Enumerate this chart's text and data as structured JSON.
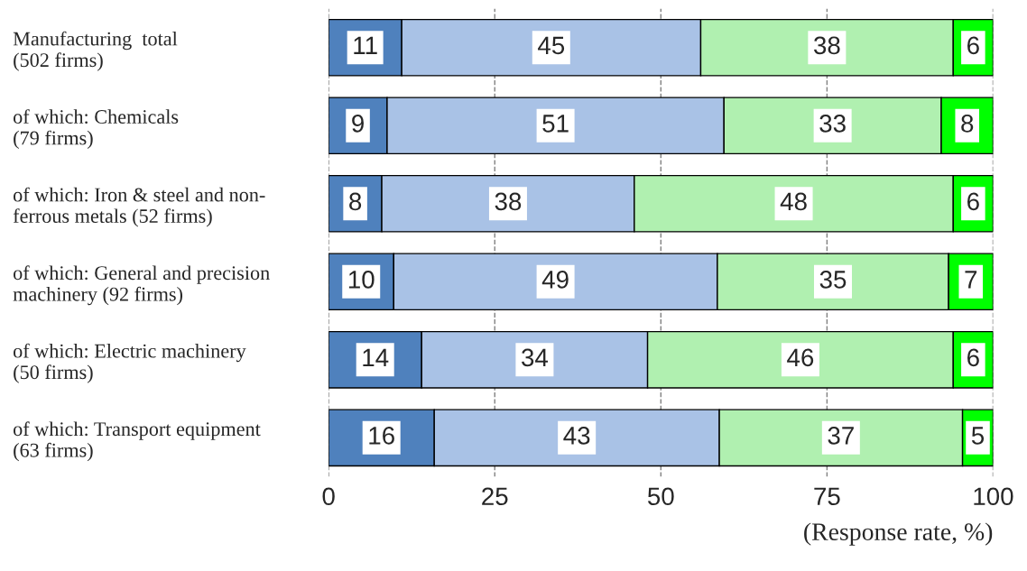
{
  "chart_data": {
    "type": "bar",
    "orientation": "horizontal",
    "stacked": true,
    "categories": [
      "Manufacturing  total\n(502 firms)",
      "of which: Chemicals\n(79 firms)",
      "of which: Iron & steel and non-\nferrous metals (52 firms)",
      "of which: General and precision\nmachinery (92 firms)",
      "of which: Electric machinery\n(50 firms)",
      "of which: Transport equipment\n(63 firms)"
    ],
    "series": [
      {
        "color": "#4f81bd",
        "values": [
          11,
          8.8,
          8,
          9.8,
          14,
          15.9
        ],
        "value_labels": [
          "11",
          "9",
          "8",
          "10",
          "14",
          "16"
        ]
      },
      {
        "color": "#a9c2e6",
        "values": [
          45,
          50.7,
          38,
          48.7,
          34,
          42.9
        ],
        "value_labels": [
          "45",
          "51",
          "38",
          "49",
          "34",
          "43"
        ]
      },
      {
        "color": "#b0f0b0",
        "values": [
          38,
          32.7,
          48,
          34.8,
          46,
          36.6
        ],
        "value_labels": [
          "38",
          "33",
          "48",
          "35",
          "46",
          "37"
        ]
      },
      {
        "color": "#00ff00",
        "values": [
          6,
          7.8,
          6,
          6.7,
          6,
          4.6
        ],
        "value_labels": [
          "6",
          "8",
          "6",
          "7",
          "6",
          "5"
        ]
      }
    ],
    "xlim": [
      0,
      100
    ],
    "xticks": [
      0,
      25,
      50,
      75,
      100
    ],
    "xlabel": "(Response rate, %)",
    "grid": "x",
    "data_labels": true
  }
}
